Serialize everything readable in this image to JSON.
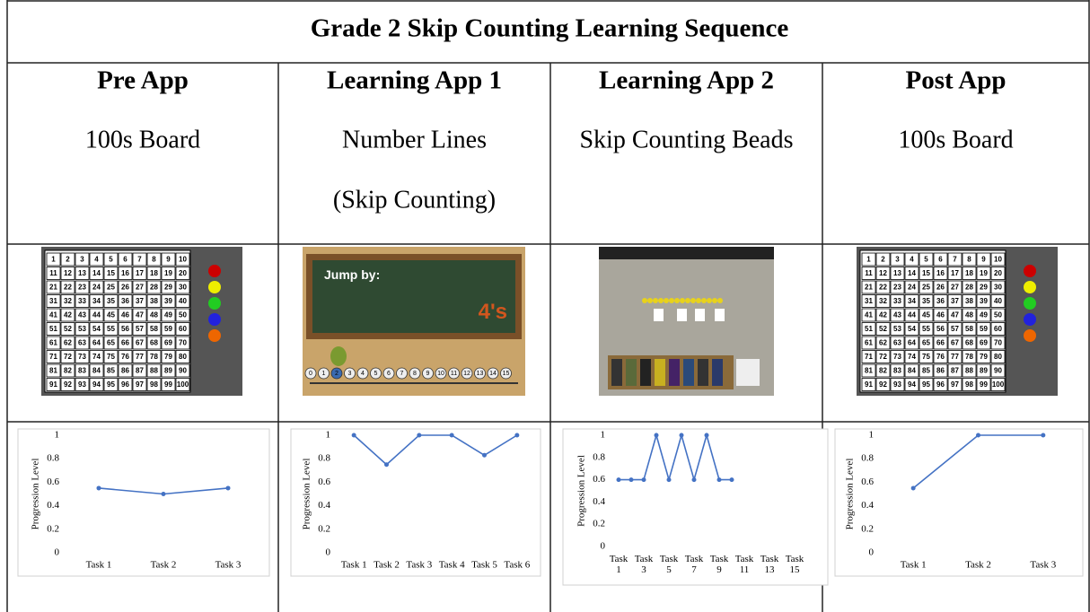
{
  "title": "Grade 2 Skip Counting Learning Sequence",
  "columns": [
    {
      "heading": "Pre App",
      "lines": [
        "100s Board"
      ],
      "image": {
        "numbers": [
          1,
          2,
          3,
          4,
          5,
          6,
          7,
          8,
          9,
          10,
          11,
          12,
          13,
          14,
          15,
          16,
          17,
          18,
          19,
          20,
          21,
          22,
          23,
          24,
          25,
          26,
          27,
          28,
          29,
          30,
          31,
          32,
          33,
          34,
          35,
          36,
          37,
          38,
          39,
          40,
          41,
          42,
          43,
          44,
          45,
          46,
          47,
          48,
          49,
          50,
          51,
          52,
          53,
          54,
          55,
          56,
          57,
          58,
          59,
          60,
          61,
          62,
          63,
          64,
          65,
          66,
          67,
          68,
          69,
          70,
          71,
          72,
          73,
          74,
          75,
          76,
          77,
          78,
          79,
          80,
          81,
          82,
          83,
          84,
          85,
          86,
          87,
          88,
          89,
          90,
          91,
          92,
          93,
          94,
          95,
          96,
          97,
          98,
          99,
          100
        ]
      },
      "chart": {
        "type": "line",
        "ylabel": "Progression Level",
        "categories": [
          "Task 1",
          "Task 2",
          "Task 3"
        ],
        "values": [
          0.55,
          0.5,
          0.55
        ],
        "color": "#4472c4",
        "ylim": [
          0,
          1
        ],
        "yticks": [
          0,
          0.2,
          0.4,
          0.6,
          0.8,
          1
        ]
      }
    },
    {
      "heading": "Learning App 1",
      "lines": [
        "Number Lines",
        "(Skip Counting)"
      ],
      "image": {
        "text": "Jump by:",
        "value_text": "4's",
        "numbers": [
          0,
          1,
          2,
          3,
          4,
          5,
          6,
          7,
          8,
          9,
          10,
          11,
          12,
          13,
          14,
          15
        ]
      },
      "chart": {
        "type": "line",
        "ylabel": "Progression Level",
        "categories": [
          "Task 1",
          "Task 2",
          "Task 3",
          "Task 4",
          "Task 5",
          "Task 6"
        ],
        "values": [
          1,
          0.75,
          1,
          1,
          0.83,
          1
        ],
        "color": "#4472c4",
        "ylim": [
          0,
          1
        ],
        "yticks": [
          0,
          0.2,
          0.4,
          0.6,
          0.8,
          1
        ]
      }
    },
    {
      "heading": "Learning App 2",
      "lines": [
        "Skip Counting Beads"
      ],
      "chart": {
        "type": "line",
        "ylabel": "Progression Level",
        "categories": [
          "Task 1",
          null,
          "Task 3",
          null,
          "Task 5",
          null,
          "Task 7",
          null,
          "Task 9",
          null,
          "Task 11",
          null,
          "Task 13",
          null,
          "Task 15"
        ],
        "values": [
          0.6,
          0.6,
          0.6,
          1,
          0.6,
          1,
          0.6,
          1,
          0.6,
          0.6,
          null,
          null,
          null,
          null,
          null
        ],
        "color": "#4472c4",
        "ylim": [
          0,
          1
        ],
        "yticks": [
          0,
          0.2,
          0.4,
          0.6,
          0.8,
          1
        ]
      }
    },
    {
      "heading": "Post App",
      "lines": [
        "100s Board"
      ],
      "image": {
        "numbers": [
          1,
          2,
          3,
          4,
          5,
          6,
          7,
          8,
          9,
          10,
          11,
          12,
          13,
          14,
          15,
          16,
          17,
          18,
          19,
          20,
          21,
          22,
          23,
          24,
          25,
          26,
          27,
          28,
          29,
          30,
          31,
          32,
          33,
          34,
          35,
          36,
          37,
          38,
          39,
          40,
          41,
          42,
          43,
          44,
          45,
          46,
          47,
          48,
          49,
          50,
          51,
          52,
          53,
          54,
          55,
          56,
          57,
          58,
          59,
          60,
          61,
          62,
          63,
          64,
          65,
          66,
          67,
          68,
          69,
          70,
          71,
          72,
          73,
          74,
          75,
          76,
          77,
          78,
          79,
          80,
          81,
          82,
          83,
          84,
          85,
          86,
          87,
          88,
          89,
          90,
          91,
          92,
          93,
          94,
          95,
          96,
          97,
          98,
          99,
          100
        ]
      },
      "chart": {
        "type": "line",
        "ylabel": "Progression Level",
        "categories": [
          "Task 1",
          "Task 2",
          "Task 3"
        ],
        "values": [
          0.55,
          1,
          1
        ],
        "color": "#4472c4",
        "ylim": [
          0,
          1
        ],
        "yticks": [
          0,
          0.2,
          0.4,
          0.6,
          0.8,
          1
        ]
      }
    }
  ]
}
